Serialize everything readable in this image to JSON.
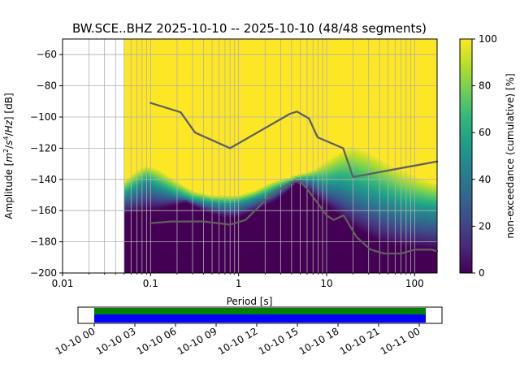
{
  "chart_data": {
    "type": "heatmap",
    "title": "BW.SCE..BHZ   2025-10-10 -- 2025-10-10  (48/48 segments)",
    "xlabel": "Period [s]",
    "ylabel_parts": [
      "Amplitude [",
      "m",
      "2",
      "/",
      "s",
      "4",
      "/",
      "Hz",
      "] [dB]"
    ],
    "xscale": "log",
    "xlim": [
      0.01,
      180
    ],
    "ylim": [
      -200,
      -50
    ],
    "x_ticks": [
      0.01,
      0.1,
      1,
      10,
      100
    ],
    "x_tick_labels": [
      "0.01",
      "0.1",
      "1",
      "10",
      "100"
    ],
    "y_ticks": [
      -200,
      -180,
      -160,
      -140,
      -120,
      -100,
      -80,
      -60
    ],
    "y_tick_labels": [
      "−200",
      "−180",
      "−160",
      "−140",
      "−120",
      "−100",
      "−80",
      "−60"
    ],
    "grid": true,
    "colormap": "viridis",
    "colorbar": {
      "label": "non-exceedance (cumulative) [%]",
      "range": [
        0,
        100
      ],
      "ticks": [
        0,
        20,
        40,
        60,
        80,
        100
      ],
      "tick_labels": [
        "0",
        "20",
        "40",
        "60",
        "80",
        "100"
      ]
    },
    "data_start_period": 0.05,
    "percentiles": {
      "low_edge_db": [
        [
          0.05,
          -162
        ],
        [
          0.08,
          -160
        ],
        [
          0.12,
          -159
        ],
        [
          0.2,
          -156
        ],
        [
          0.25,
          -154
        ],
        [
          0.35,
          -158
        ],
        [
          0.5,
          -162
        ],
        [
          0.7,
          -164
        ],
        [
          1,
          -164
        ],
        [
          1.5,
          -160
        ],
        [
          2.5,
          -154
        ],
        [
          3.5,
          -148
        ],
        [
          4.5,
          -142
        ],
        [
          6,
          -146
        ],
        [
          8,
          -152
        ],
        [
          12,
          -160
        ],
        [
          20,
          -170
        ],
        [
          40,
          -180
        ],
        [
          80,
          -183
        ],
        [
          180,
          -185
        ]
      ],
      "median_db": [
        [
          0.05,
          -150
        ],
        [
          0.07,
          -145
        ],
        [
          0.09,
          -141
        ],
        [
          0.12,
          -145
        ],
        [
          0.2,
          -150
        ],
        [
          0.3,
          -153
        ],
        [
          0.5,
          -155
        ],
        [
          0.8,
          -156
        ],
        [
          1.2,
          -154
        ],
        [
          2,
          -150
        ],
        [
          3,
          -145
        ],
        [
          4.5,
          -140
        ],
        [
          7,
          -140
        ],
        [
          10,
          -143
        ],
        [
          14,
          -143
        ],
        [
          20,
          -146
        ],
        [
          40,
          -152
        ],
        [
          80,
          -158
        ],
        [
          180,
          -160
        ]
      ],
      "high_edge_db": [
        [
          0.05,
          -141
        ],
        [
          0.07,
          -134
        ],
        [
          0.09,
          -131
        ],
        [
          0.12,
          -133
        ],
        [
          0.2,
          -141
        ],
        [
          0.3,
          -147
        ],
        [
          0.5,
          -150
        ],
        [
          1,
          -150
        ],
        [
          1.5,
          -147
        ],
        [
          2.5,
          -141
        ],
        [
          4,
          -138
        ],
        [
          7,
          -134
        ],
        [
          10,
          -128
        ],
        [
          14,
          -122
        ],
        [
          20,
          -118
        ],
        [
          30,
          -122
        ],
        [
          60,
          -132
        ],
        [
          120,
          -139
        ],
        [
          180,
          -142
        ]
      ]
    },
    "reference_curves": [
      {
        "role": "new-high-noise-model",
        "points": [
          [
            0.1,
            -91
          ],
          [
            0.22,
            -97
          ],
          [
            0.32,
            -110
          ],
          [
            0.8,
            -120
          ],
          [
            3.8,
            -98
          ],
          [
            4.6,
            -96.5
          ],
          [
            6.3,
            -101
          ],
          [
            7.9,
            -113
          ],
          [
            15.4,
            -120
          ],
          [
            20,
            -138.5
          ],
          [
            180,
            -128.5
          ]
        ]
      },
      {
        "role": "new-low-noise-model",
        "points": [
          [
            0.1,
            -168
          ],
          [
            0.17,
            -167
          ],
          [
            0.4,
            -167
          ],
          [
            0.8,
            -169
          ],
          [
            1.2,
            -166
          ],
          [
            2.4,
            -149
          ],
          [
            4.3,
            -141
          ],
          [
            5,
            -141
          ],
          [
            6,
            -146
          ],
          [
            10,
            -163
          ],
          [
            12,
            -166
          ],
          [
            15.6,
            -163
          ],
          [
            21.9,
            -177
          ],
          [
            31.6,
            -185
          ],
          [
            45,
            -187.5
          ],
          [
            70,
            -187.5
          ],
          [
            101,
            -185
          ],
          [
            154,
            -185
          ],
          [
            180,
            -186
          ]
        ]
      }
    ]
  },
  "timeline": {
    "ticks": [
      "10-10 00",
      "10-10 03",
      "10-10 06",
      "10-10 09",
      "10-10 12",
      "10-10 15",
      "10-10 18",
      "10-10 21",
      "10-11 00"
    ],
    "colors": {
      "coverage": "#0000ff",
      "processed": "#008000"
    },
    "coverage_fraction": 1.0,
    "segments_used": 48,
    "segments_total": 48
  }
}
